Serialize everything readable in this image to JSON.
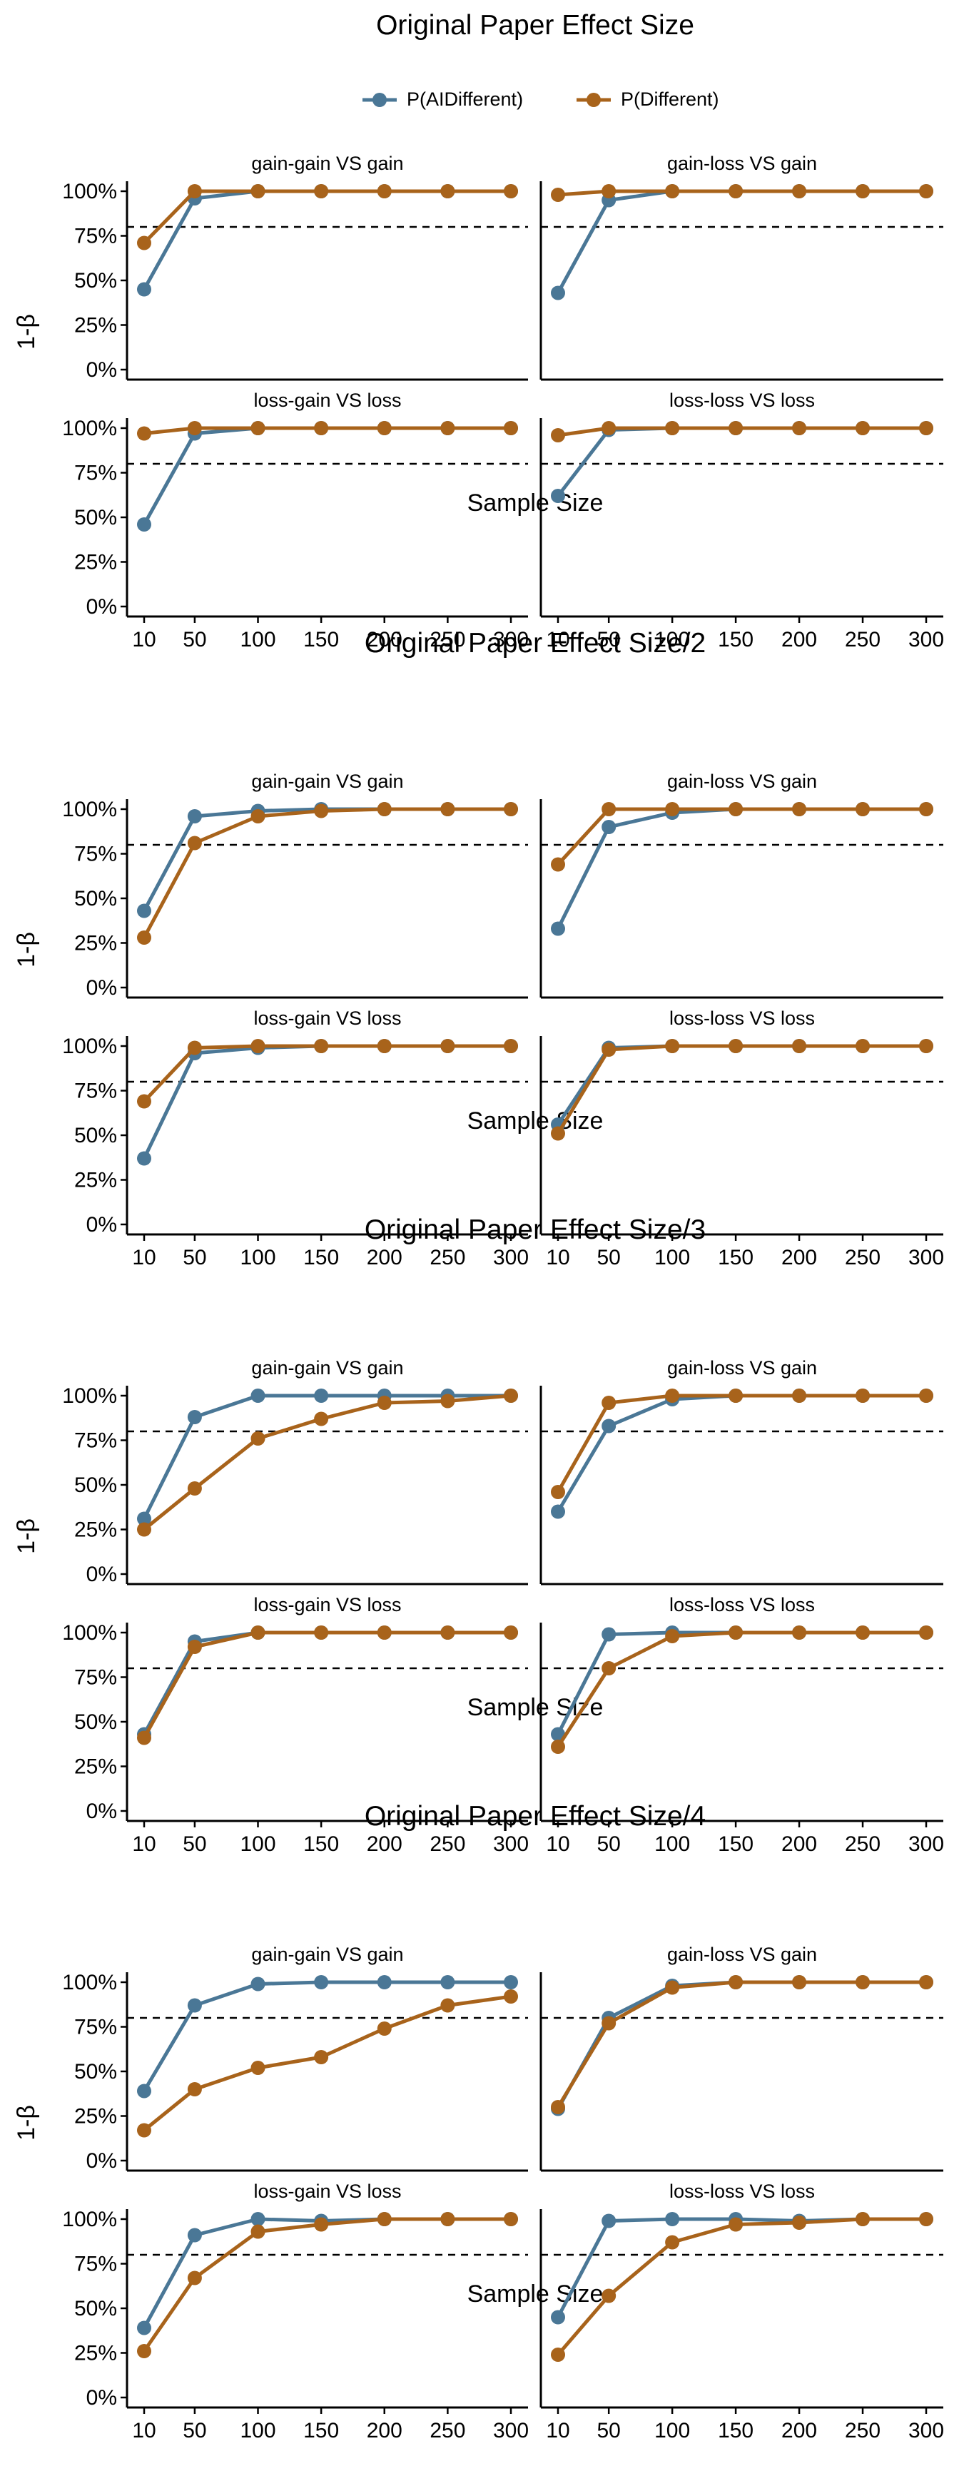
{
  "legend": {
    "items": [
      {
        "label": "P(AIDifferent)",
        "color": "#4a7796"
      },
      {
        "label": "P(Different)",
        "color": "#a8631b"
      }
    ]
  },
  "chart_data": [
    {
      "type": "line",
      "title": "Original Paper Effect Size",
      "xlabel": "Sample Size",
      "ylabel": "1-β",
      "x": [
        10,
        50,
        100,
        150,
        200,
        250,
        300
      ],
      "x_tick_labels": [
        "10",
        "50",
        "100",
        "150",
        "200",
        "250",
        "300"
      ],
      "y_tick_labels": [
        "0%",
        "25%",
        "50%",
        "75%",
        "100%"
      ],
      "ylim": [
        0,
        1
      ],
      "reference_line": 0.8,
      "panels": [
        {
          "title": "gain-gain VS gain",
          "series": [
            {
              "name": "P(AIDifferent)",
              "values": [
                0.45,
                0.96,
                1.0,
                1.0,
                1.0,
                1.0,
                1.0
              ]
            },
            {
              "name": "P(Different)",
              "values": [
                0.71,
                1.0,
                1.0,
                1.0,
                1.0,
                1.0,
                1.0
              ]
            }
          ]
        },
        {
          "title": "gain-loss VS gain",
          "series": [
            {
              "name": "P(AIDifferent)",
              "values": [
                0.43,
                0.95,
                1.0,
                1.0,
                1.0,
                1.0,
                1.0
              ]
            },
            {
              "name": "P(Different)",
              "values": [
                0.98,
                1.0,
                1.0,
                1.0,
                1.0,
                1.0,
                1.0
              ]
            }
          ]
        },
        {
          "title": "loss-gain VS loss",
          "series": [
            {
              "name": "P(AIDifferent)",
              "values": [
                0.46,
                0.97,
                1.0,
                1.0,
                1.0,
                1.0,
                1.0
              ]
            },
            {
              "name": "P(Different)",
              "values": [
                0.97,
                1.0,
                1.0,
                1.0,
                1.0,
                1.0,
                1.0
              ]
            }
          ]
        },
        {
          "title": "loss-loss VS loss",
          "series": [
            {
              "name": "P(AIDifferent)",
              "values": [
                0.62,
                0.99,
                1.0,
                1.0,
                1.0,
                1.0,
                1.0
              ]
            },
            {
              "name": "P(Different)",
              "values": [
                0.96,
                1.0,
                1.0,
                1.0,
                1.0,
                1.0,
                1.0
              ]
            }
          ]
        }
      ]
    },
    {
      "type": "line",
      "title": "Original Paper Effect Size/2",
      "xlabel": "Sample Size",
      "ylabel": "1-β",
      "x": [
        10,
        50,
        100,
        150,
        200,
        250,
        300
      ],
      "x_tick_labels": [
        "10",
        "50",
        "100",
        "150",
        "200",
        "250",
        "300"
      ],
      "y_tick_labels": [
        "0%",
        "25%",
        "50%",
        "75%",
        "100%"
      ],
      "ylim": [
        0,
        1
      ],
      "reference_line": 0.8,
      "panels": [
        {
          "title": "gain-gain VS gain",
          "series": [
            {
              "name": "P(AIDifferent)",
              "values": [
                0.43,
                0.96,
                0.99,
                1.0,
                1.0,
                1.0,
                1.0
              ]
            },
            {
              "name": "P(Different)",
              "values": [
                0.28,
                0.81,
                0.96,
                0.99,
                1.0,
                1.0,
                1.0
              ]
            }
          ]
        },
        {
          "title": "gain-loss VS gain",
          "series": [
            {
              "name": "P(AIDifferent)",
              "values": [
                0.33,
                0.9,
                0.98,
                1.0,
                1.0,
                1.0,
                1.0
              ]
            },
            {
              "name": "P(Different)",
              "values": [
                0.69,
                1.0,
                1.0,
                1.0,
                1.0,
                1.0,
                1.0
              ]
            }
          ]
        },
        {
          "title": "loss-gain VS loss",
          "series": [
            {
              "name": "P(AIDifferent)",
              "values": [
                0.37,
                0.96,
                0.99,
                1.0,
                1.0,
                1.0,
                1.0
              ]
            },
            {
              "name": "P(Different)",
              "values": [
                0.69,
                0.99,
                1.0,
                1.0,
                1.0,
                1.0,
                1.0
              ]
            }
          ]
        },
        {
          "title": "loss-loss VS loss",
          "series": [
            {
              "name": "P(AIDifferent)",
              "values": [
                0.56,
                0.99,
                1.0,
                1.0,
                1.0,
                1.0,
                1.0
              ]
            },
            {
              "name": "P(Different)",
              "values": [
                0.51,
                0.98,
                1.0,
                1.0,
                1.0,
                1.0,
                1.0
              ]
            }
          ]
        }
      ]
    },
    {
      "type": "line",
      "title": "Original Paper Effect Size/3",
      "xlabel": "Sample Size",
      "ylabel": "1-β",
      "x": [
        10,
        50,
        100,
        150,
        200,
        250,
        300
      ],
      "x_tick_labels": [
        "10",
        "50",
        "100",
        "150",
        "200",
        "250",
        "300"
      ],
      "y_tick_labels": [
        "0%",
        "25%",
        "50%",
        "75%",
        "100%"
      ],
      "ylim": [
        0,
        1
      ],
      "reference_line": 0.8,
      "panels": [
        {
          "title": "gain-gain VS gain",
          "series": [
            {
              "name": "P(AIDifferent)",
              "values": [
                0.31,
                0.88,
                1.0,
                1.0,
                1.0,
                1.0,
                1.0
              ]
            },
            {
              "name": "P(Different)",
              "values": [
                0.25,
                0.48,
                0.76,
                0.87,
                0.96,
                0.97,
                1.0
              ]
            }
          ]
        },
        {
          "title": "gain-loss VS gain",
          "series": [
            {
              "name": "P(AIDifferent)",
              "values": [
                0.35,
                0.83,
                0.98,
                1.0,
                1.0,
                1.0,
                1.0
              ]
            },
            {
              "name": "P(Different)",
              "values": [
                0.46,
                0.96,
                1.0,
                1.0,
                1.0,
                1.0,
                1.0
              ]
            }
          ]
        },
        {
          "title": "loss-gain VS loss",
          "series": [
            {
              "name": "P(AIDifferent)",
              "values": [
                0.43,
                0.95,
                1.0,
                1.0,
                1.0,
                1.0,
                1.0
              ]
            },
            {
              "name": "P(Different)",
              "values": [
                0.41,
                0.92,
                1.0,
                1.0,
                1.0,
                1.0,
                1.0
              ]
            }
          ]
        },
        {
          "title": "loss-loss VS loss",
          "series": [
            {
              "name": "P(AIDifferent)",
              "values": [
                0.43,
                0.99,
                1.0,
                1.0,
                1.0,
                1.0,
                1.0
              ]
            },
            {
              "name": "P(Different)",
              "values": [
                0.36,
                0.8,
                0.98,
                1.0,
                1.0,
                1.0,
                1.0
              ]
            }
          ]
        }
      ]
    },
    {
      "type": "line",
      "title": "Original Paper Effect Size/4",
      "xlabel": "Sample Size",
      "ylabel": "1-β",
      "x": [
        10,
        50,
        100,
        150,
        200,
        250,
        300
      ],
      "x_tick_labels": [
        "10",
        "50",
        "100",
        "150",
        "200",
        "250",
        "300"
      ],
      "y_tick_labels": [
        "0%",
        "25%",
        "50%",
        "75%",
        "100%"
      ],
      "ylim": [
        0,
        1
      ],
      "reference_line": 0.8,
      "panels": [
        {
          "title": "gain-gain VS gain",
          "series": [
            {
              "name": "P(AIDifferent)",
              "values": [
                0.39,
                0.87,
                0.99,
                1.0,
                1.0,
                1.0,
                1.0
              ]
            },
            {
              "name": "P(Different)",
              "values": [
                0.17,
                0.4,
                0.52,
                0.58,
                0.74,
                0.87,
                0.92
              ]
            }
          ]
        },
        {
          "title": "gain-loss VS gain",
          "series": [
            {
              "name": "P(AIDifferent)",
              "values": [
                0.29,
                0.8,
                0.98,
                1.0,
                1.0,
                1.0,
                1.0
              ]
            },
            {
              "name": "P(Different)",
              "values": [
                0.3,
                0.77,
                0.97,
                1.0,
                1.0,
                1.0,
                1.0
              ]
            }
          ]
        },
        {
          "title": "loss-gain VS loss",
          "series": [
            {
              "name": "P(AIDifferent)",
              "values": [
                0.39,
                0.91,
                1.0,
                0.99,
                1.0,
                1.0,
                1.0
              ]
            },
            {
              "name": "P(Different)",
              "values": [
                0.26,
                0.67,
                0.93,
                0.97,
                1.0,
                1.0,
                1.0
              ]
            }
          ]
        },
        {
          "title": "loss-loss VS loss",
          "series": [
            {
              "name": "P(AIDifferent)",
              "values": [
                0.45,
                0.99,
                1.0,
                1.0,
                0.99,
                1.0,
                1.0
              ]
            },
            {
              "name": "P(Different)",
              "values": [
                0.24,
                0.57,
                0.87,
                0.97,
                0.98,
                1.0,
                1.0
              ]
            }
          ]
        }
      ]
    }
  ]
}
